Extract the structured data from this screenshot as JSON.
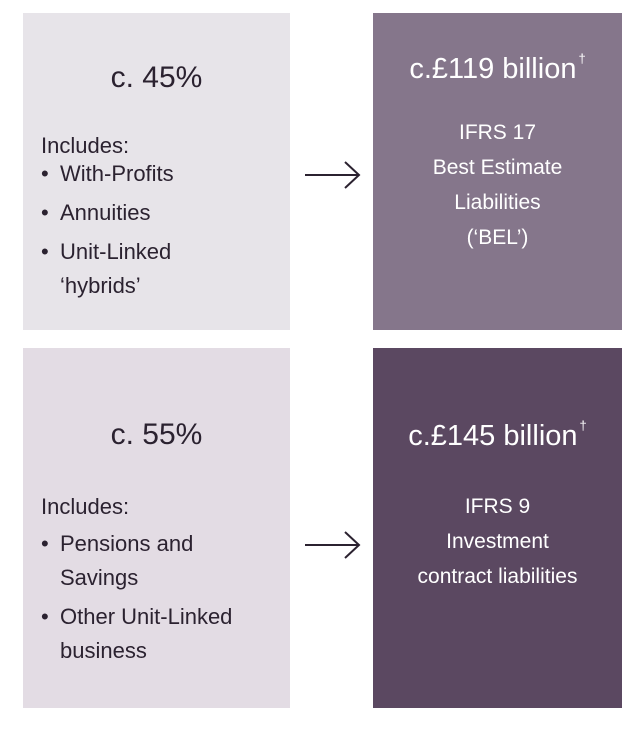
{
  "rows": [
    {
      "left": {
        "share": "c. 45%",
        "intro": "Includes:",
        "items": [
          [
            "With-Profits"
          ],
          [
            "Annuities"
          ],
          [
            "Unit-Linked",
            "‘hybrids’"
          ]
        ]
      },
      "right": {
        "amount": "c.£119 billion",
        "marker": "†",
        "lines": [
          "IFRS 17",
          "Best Estimate",
          "Liabilities",
          "(‘BEL’)"
        ]
      }
    },
    {
      "left": {
        "share": "c. 55%",
        "intro": "Includes:",
        "items": [
          [
            "Pensions and",
            "Savings"
          ],
          [
            "Other Unit-Linked",
            "business"
          ]
        ]
      },
      "right": {
        "amount": "c.£145 billion",
        "marker": "†",
        "lines": [
          "IFRS 9",
          "Investment",
          "contract liabilities"
        ]
      }
    }
  ]
}
